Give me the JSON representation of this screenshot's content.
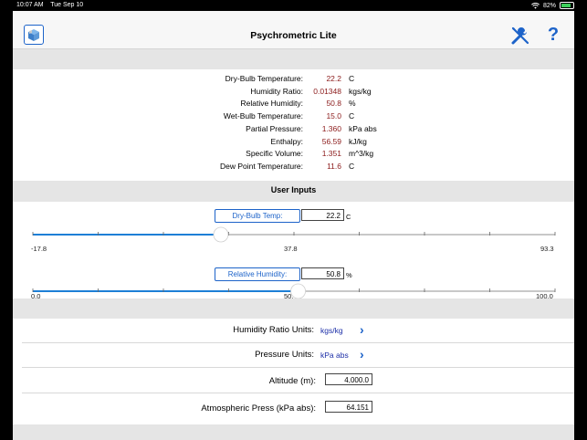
{
  "status_bar": {
    "time": "10:07 AM",
    "date": "Tue Sep 10",
    "battery_pct": "82%",
    "battery_level": 0.82
  },
  "navbar": {
    "title": "Psychrometric Lite",
    "help_label": "?"
  },
  "results": [
    {
      "label": "Dry-Bulb Temperature:",
      "value": "22.2",
      "unit": "C"
    },
    {
      "label": "Humidity Ratio:",
      "value": "0.01348",
      "unit": "kgs/kg"
    },
    {
      "label": "Relative Humidity:",
      "value": "50.8",
      "unit": "%"
    },
    {
      "label": "Wet-Bulb Temperature:",
      "value": "15.0",
      "unit": "C"
    },
    {
      "label": "Partial Pressure:",
      "value": "1.360",
      "unit": "kPa abs"
    },
    {
      "label": "Enthalpy:",
      "value": "56.59",
      "unit": "kJ/kg"
    },
    {
      "label": "Specific Volume:",
      "value": "1.351",
      "unit": "m^3/kg"
    },
    {
      "label": "Dew Point Temperature:",
      "value": "11.6",
      "unit": "C"
    }
  ],
  "user_inputs": {
    "title": "User Inputs",
    "dry_bulb": {
      "button_label": "Dry-Bulb Temp:",
      "value": "22.2",
      "unit": "C",
      "min_label": "-17.8",
      "mid_label": "37.8",
      "max_label": "93.3",
      "min": -17.8,
      "max": 93.3,
      "current": 22.2
    },
    "rh": {
      "button_label": "Relative Humidity:",
      "value": "50.8",
      "unit": "%",
      "min_label": "0.0",
      "mid_label": "50.",
      "max_label": "100.0",
      "min": 0,
      "max": 100,
      "current": 50.8
    }
  },
  "settings": {
    "humidity_ratio_units": {
      "label": "Humidity Ratio Units:",
      "value": "kgs/kg"
    },
    "pressure_units": {
      "label": "Pressure Units:",
      "value": "kPa abs"
    },
    "altitude": {
      "label": "Altitude (m):",
      "value": "4,000.0"
    },
    "atm_press": {
      "label": "Atmospheric Press (kPa abs):",
      "value": "64.151"
    }
  },
  "colors": {
    "accent": "#1d63c9",
    "result_value": "#8b1a1a",
    "setting_value": "#1d2fa8",
    "slider_fill": "#1d7fd6"
  }
}
